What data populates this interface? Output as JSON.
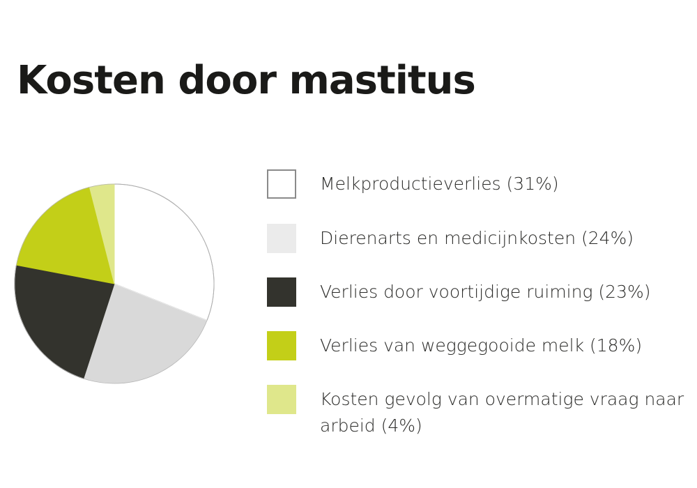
{
  "chart_data": {
    "type": "pie",
    "title": "Kosten door mastitus",
    "slices": [
      {
        "label": "Melkproductieverlies (31%)",
        "value": 31,
        "color": "#ffffff",
        "stroke": "#8a8a8a"
      },
      {
        "label": "Dierenarts en medicijnkosten (24%)",
        "value": 24,
        "color": "#d9d9d9",
        "stroke": "#eaeaea"
      },
      {
        "label": "Verlies door voortijdige ruiming (23%)",
        "value": 23,
        "color": "#33332d",
        "stroke": "#33332d"
      },
      {
        "label": "Verlies van weggegooide melk (18%)",
        "value": 18,
        "color": "#c3cf18",
        "stroke": "#c3cf18"
      },
      {
        "label": "Kosten gevolg van overmatige vraag naar arbeid (4%)",
        "value": 4,
        "color": "#dfe78b",
        "stroke": "#dfe78b"
      }
    ],
    "start": "12 o'clock",
    "direction": "clockwise",
    "legend_position": "right"
  }
}
